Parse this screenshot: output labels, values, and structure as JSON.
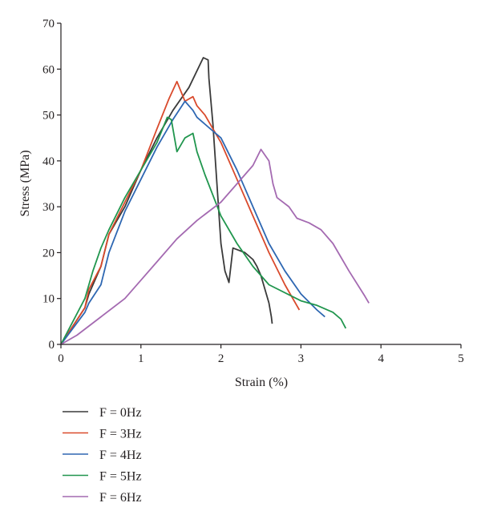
{
  "chart_data": {
    "type": "line",
    "xlabel": "Strain (%)",
    "ylabel": "Stress (MPa)",
    "xlim": [
      0,
      5
    ],
    "ylim": [
      0,
      70
    ],
    "xticks": [
      "0",
      "1",
      "2",
      "3",
      "4",
      "5"
    ],
    "yticks": [
      "0",
      "10",
      "20",
      "30",
      "40",
      "50",
      "60",
      "70"
    ],
    "grid": false,
    "legend_position": "below",
    "series": [
      {
        "name": "F = 0Hz",
        "color": "#3a3a3a",
        "points": [
          [
            0,
            0
          ],
          [
            0.3,
            8
          ],
          [
            0.35,
            11
          ],
          [
            0.5,
            17
          ],
          [
            0.6,
            24
          ],
          [
            0.8,
            30
          ],
          [
            1.0,
            38
          ],
          [
            1.2,
            45
          ],
          [
            1.4,
            51
          ],
          [
            1.6,
            56
          ],
          [
            1.78,
            62.5
          ],
          [
            1.84,
            62
          ],
          [
            1.85,
            58
          ],
          [
            1.9,
            48
          ],
          [
            1.95,
            35
          ],
          [
            2.0,
            22
          ],
          [
            2.05,
            16
          ],
          [
            2.1,
            13.5
          ],
          [
            2.15,
            21
          ],
          [
            2.3,
            20
          ],
          [
            2.4,
            18.5
          ],
          [
            2.45,
            17
          ],
          [
            2.5,
            15
          ],
          [
            2.55,
            12
          ],
          [
            2.6,
            9
          ],
          [
            2.63,
            6
          ],
          [
            2.64,
            4.5
          ]
        ]
      },
      {
        "name": "F = 3Hz",
        "color": "#d94a2c",
        "points": [
          [
            0,
            0
          ],
          [
            0.3,
            8
          ],
          [
            0.35,
            12
          ],
          [
            0.5,
            17
          ],
          [
            0.6,
            24
          ],
          [
            0.8,
            31
          ],
          [
            1.0,
            38
          ],
          [
            1.2,
            47
          ],
          [
            1.35,
            53.5
          ],
          [
            1.45,
            57.3
          ],
          [
            1.55,
            53
          ],
          [
            1.65,
            54
          ],
          [
            1.7,
            52
          ],
          [
            1.8,
            50
          ],
          [
            2.0,
            44
          ],
          [
            2.2,
            36
          ],
          [
            2.4,
            28
          ],
          [
            2.6,
            20
          ],
          [
            2.8,
            13
          ],
          [
            2.98,
            7.5
          ]
        ]
      },
      {
        "name": "F = 4Hz",
        "color": "#2e67b2",
        "points": [
          [
            0,
            0
          ],
          [
            0.3,
            7
          ],
          [
            0.35,
            9
          ],
          [
            0.5,
            13
          ],
          [
            0.6,
            20
          ],
          [
            0.8,
            29
          ],
          [
            1.0,
            36
          ],
          [
            1.2,
            43
          ],
          [
            1.4,
            49
          ],
          [
            1.55,
            53
          ],
          [
            1.65,
            51
          ],
          [
            1.7,
            49.5
          ],
          [
            1.8,
            48
          ],
          [
            2.0,
            45
          ],
          [
            2.2,
            38
          ],
          [
            2.4,
            30
          ],
          [
            2.6,
            22
          ],
          [
            2.8,
            16
          ],
          [
            3.0,
            11
          ],
          [
            3.2,
            7.5
          ],
          [
            3.3,
            6
          ]
        ]
      },
      {
        "name": "F = 5Hz",
        "color": "#21964e",
        "points": [
          [
            0,
            0
          ],
          [
            0.3,
            10
          ],
          [
            0.4,
            16
          ],
          [
            0.5,
            21
          ],
          [
            0.6,
            25
          ],
          [
            0.8,
            32
          ],
          [
            1.0,
            38
          ],
          [
            1.2,
            44
          ],
          [
            1.33,
            49.5
          ],
          [
            1.38,
            49
          ],
          [
            1.45,
            42
          ],
          [
            1.55,
            45
          ],
          [
            1.65,
            46
          ],
          [
            1.7,
            42
          ],
          [
            1.8,
            37
          ],
          [
            2.0,
            28
          ],
          [
            2.2,
            22
          ],
          [
            2.4,
            17
          ],
          [
            2.6,
            13
          ],
          [
            3.0,
            9.5
          ],
          [
            3.2,
            8.5
          ],
          [
            3.4,
            7
          ],
          [
            3.5,
            5.5
          ],
          [
            3.56,
            3.5
          ]
        ]
      },
      {
        "name": "F = 6Hz",
        "color": "#a46ab1",
        "points": [
          [
            0,
            0
          ],
          [
            0.2,
            2
          ],
          [
            0.5,
            6
          ],
          [
            0.8,
            10
          ],
          [
            1.0,
            14
          ],
          [
            1.2,
            18
          ],
          [
            1.45,
            23
          ],
          [
            1.7,
            27
          ],
          [
            2.0,
            31
          ],
          [
            2.2,
            35
          ],
          [
            2.4,
            39
          ],
          [
            2.5,
            42.5
          ],
          [
            2.6,
            40
          ],
          [
            2.65,
            35
          ],
          [
            2.7,
            32
          ],
          [
            2.85,
            30
          ],
          [
            2.95,
            27.5
          ],
          [
            3.1,
            26.5
          ],
          [
            3.25,
            25
          ],
          [
            3.4,
            22
          ],
          [
            3.6,
            16
          ],
          [
            3.8,
            10.5
          ],
          [
            3.85,
            9
          ]
        ]
      }
    ]
  }
}
